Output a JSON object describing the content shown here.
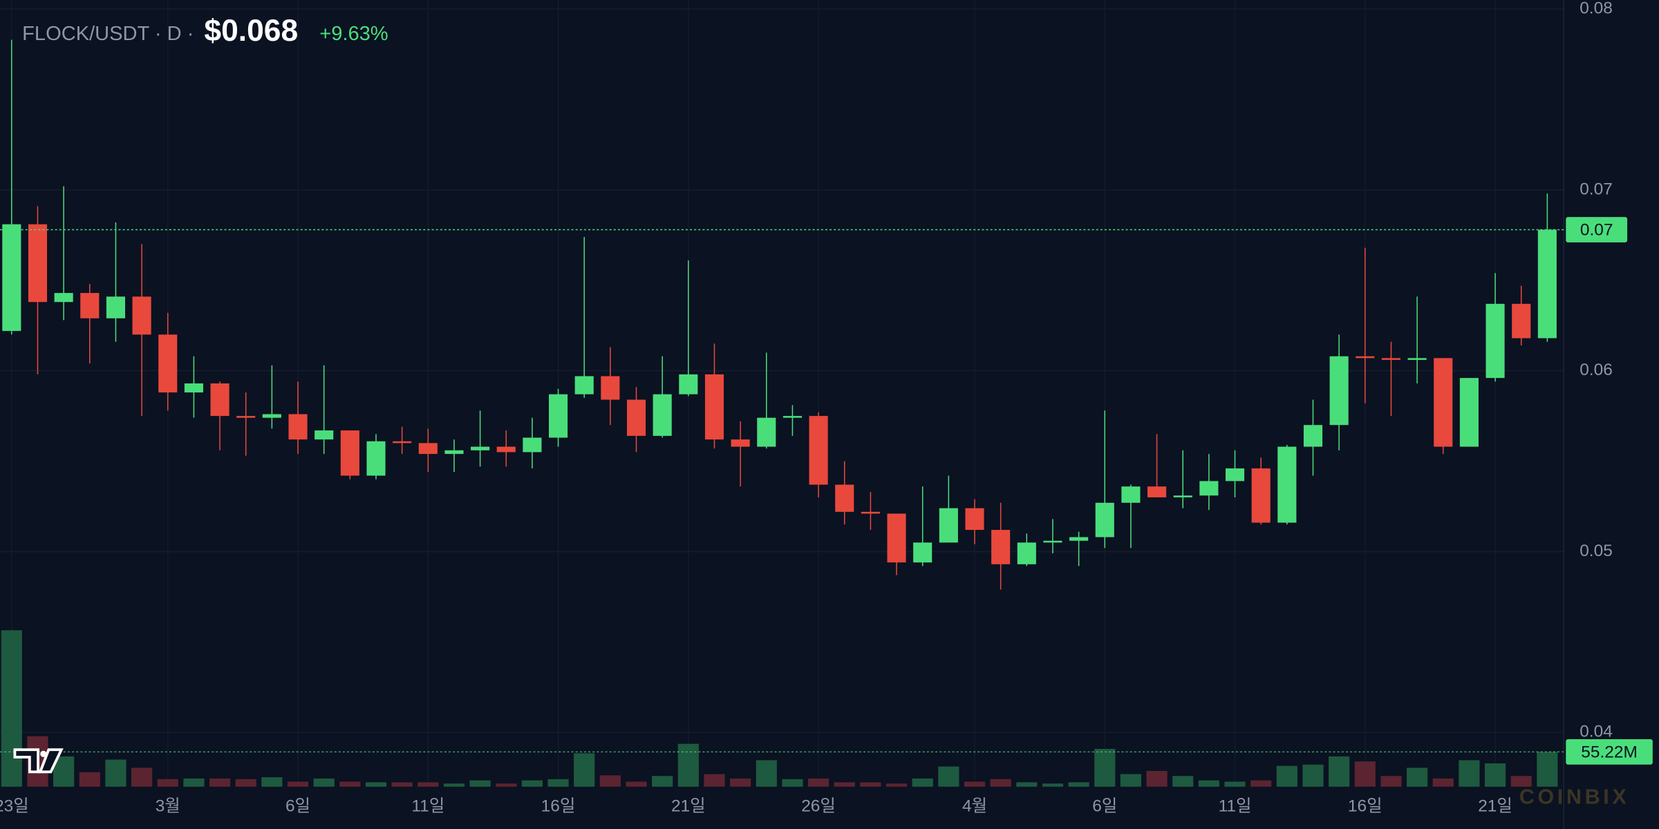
{
  "chart_data": {
    "type": "candlestick",
    "title": "FLOCK/USDT · D ·",
    "price": "$0.068",
    "change": "+9.63%",
    "watermark": "COINBIX",
    "categories": [
      "23일",
      null,
      null,
      null,
      null,
      null,
      "3월",
      null,
      null,
      null,
      null,
      "6일",
      null,
      null,
      null,
      null,
      "11일",
      null,
      null,
      null,
      null,
      "16일",
      null,
      null,
      null,
      null,
      "21일",
      null,
      null,
      null,
      null,
      "26일",
      null,
      null,
      null,
      null,
      null,
      "4월",
      null,
      null,
      null,
      null,
      "6일",
      null,
      null,
      null,
      null,
      "11일",
      null,
      null,
      null,
      null,
      "16일",
      null,
      null,
      null,
      null,
      "21일",
      null,
      null
    ],
    "open": [
      0.0622,
      0.0681,
      0.0638,
      0.0643,
      0.0629,
      0.0641,
      0.062,
      0.0588,
      0.0593,
      0.0575,
      0.0574,
      0.0576,
      0.0562,
      0.0567,
      0.0542,
      0.0561,
      0.056,
      0.0554,
      0.0556,
      0.0558,
      0.0555,
      0.0563,
      0.0587,
      0.0597,
      0.0584,
      0.0564,
      0.0587,
      0.0598,
      0.0562,
      0.0558,
      0.0574,
      0.0575,
      0.0537,
      0.0522,
      0.0521,
      0.0494,
      0.0505,
      0.0524,
      0.0512,
      0.0493,
      0.0505,
      0.0506,
      0.0508,
      0.0527,
      0.0536,
      0.053,
      0.0531,
      0.0539,
      0.0546,
      0.0516,
      0.0558,
      0.057,
      0.0608,
      0.0607,
      0.0606,
      0.0607,
      0.0558,
      0.0596,
      0.0637,
      0.0618
    ],
    "high": [
      0.0783,
      0.0691,
      0.0702,
      0.0648,
      0.0682,
      0.067,
      0.0632,
      0.0608,
      0.0594,
      0.0588,
      0.0603,
      0.0594,
      0.0603,
      0.0567,
      0.0565,
      0.0569,
      0.0568,
      0.0562,
      0.0578,
      0.0567,
      0.0574,
      0.059,
      0.0674,
      0.0613,
      0.0591,
      0.0608,
      0.0661,
      0.0615,
      0.0572,
      0.061,
      0.0581,
      0.0577,
      0.055,
      0.0533,
      0.0521,
      0.0536,
      0.0542,
      0.0529,
      0.0527,
      0.051,
      0.0518,
      0.0511,
      0.0578,
      0.0537,
      0.0565,
      0.0556,
      0.0554,
      0.0556,
      0.0552,
      0.0559,
      0.0584,
      0.062,
      0.0668,
      0.0616,
      0.0641,
      0.0607,
      0.0596,
      0.0654,
      0.0647,
      0.0698
    ],
    "low": [
      0.062,
      0.0598,
      0.0628,
      0.0604,
      0.0616,
      0.0575,
      0.0578,
      0.0574,
      0.0556,
      0.0553,
      0.0568,
      0.0554,
      0.0554,
      0.054,
      0.054,
      0.0554,
      0.0544,
      0.0544,
      0.0547,
      0.0547,
      0.0546,
      0.0558,
      0.0585,
      0.057,
      0.0555,
      0.0563,
      0.0586,
      0.0557,
      0.0536,
      0.0557,
      0.0564,
      0.053,
      0.0515,
      0.0512,
      0.0487,
      0.0492,
      0.0505,
      0.0504,
      0.0479,
      0.0492,
      0.0499,
      0.0492,
      0.0502,
      0.0502,
      0.053,
      0.0524,
      0.0523,
      0.053,
      0.0515,
      0.0515,
      0.0542,
      0.0556,
      0.0582,
      0.0575,
      0.0593,
      0.0554,
      0.0558,
      0.0594,
      0.0614,
      0.0616
    ],
    "close": [
      0.0681,
      0.0638,
      0.0643,
      0.0629,
      0.0641,
      0.062,
      0.0588,
      0.0593,
      0.0575,
      0.0574,
      0.0576,
      0.0562,
      0.0567,
      0.0542,
      0.0561,
      0.056,
      0.0554,
      0.0556,
      0.0558,
      0.0555,
      0.0563,
      0.0587,
      0.0597,
      0.0584,
      0.0564,
      0.0587,
      0.0598,
      0.0562,
      0.0558,
      0.0574,
      0.0575,
      0.0537,
      0.0522,
      0.0521,
      0.0494,
      0.0505,
      0.0524,
      0.0512,
      0.0493,
      0.0505,
      0.0506,
      0.0508,
      0.0527,
      0.0536,
      0.053,
      0.0531,
      0.0539,
      0.0546,
      0.0516,
      0.0558,
      0.057,
      0.0608,
      0.0607,
      0.0606,
      0.0607,
      0.0558,
      0.0596,
      0.0637,
      0.0618,
      0.0678
    ],
    "volume": [
      248,
      80,
      48,
      23,
      43,
      30,
      12,
      13,
      13,
      12,
      15,
      8,
      13,
      8,
      7,
      7,
      7,
      5,
      10,
      5,
      10,
      12,
      53,
      18,
      8,
      17,
      68,
      20,
      13,
      42,
      12,
      13,
      7,
      7,
      5,
      13,
      32,
      8,
      12,
      7,
      5,
      7,
      60,
      20,
      25,
      17,
      10,
      8,
      10,
      33,
      35,
      48,
      40,
      17,
      30,
      13,
      42,
      37,
      17,
      55.22
    ],
    "last_close_label": "0.07",
    "last_volume_label": "55.22M",
    "ylim": [
      0.037,
      0.0805
    ],
    "yticks": [
      0.04,
      0.05,
      0.06,
      0.07,
      0.08
    ],
    "volume_ylim": [
      0,
      290
    ],
    "grid": true,
    "up_color": "#4ade7b",
    "down_color": "#e8493c",
    "up_volume_color": "#1e5a3f",
    "down_volume_color": "#5c2430"
  }
}
